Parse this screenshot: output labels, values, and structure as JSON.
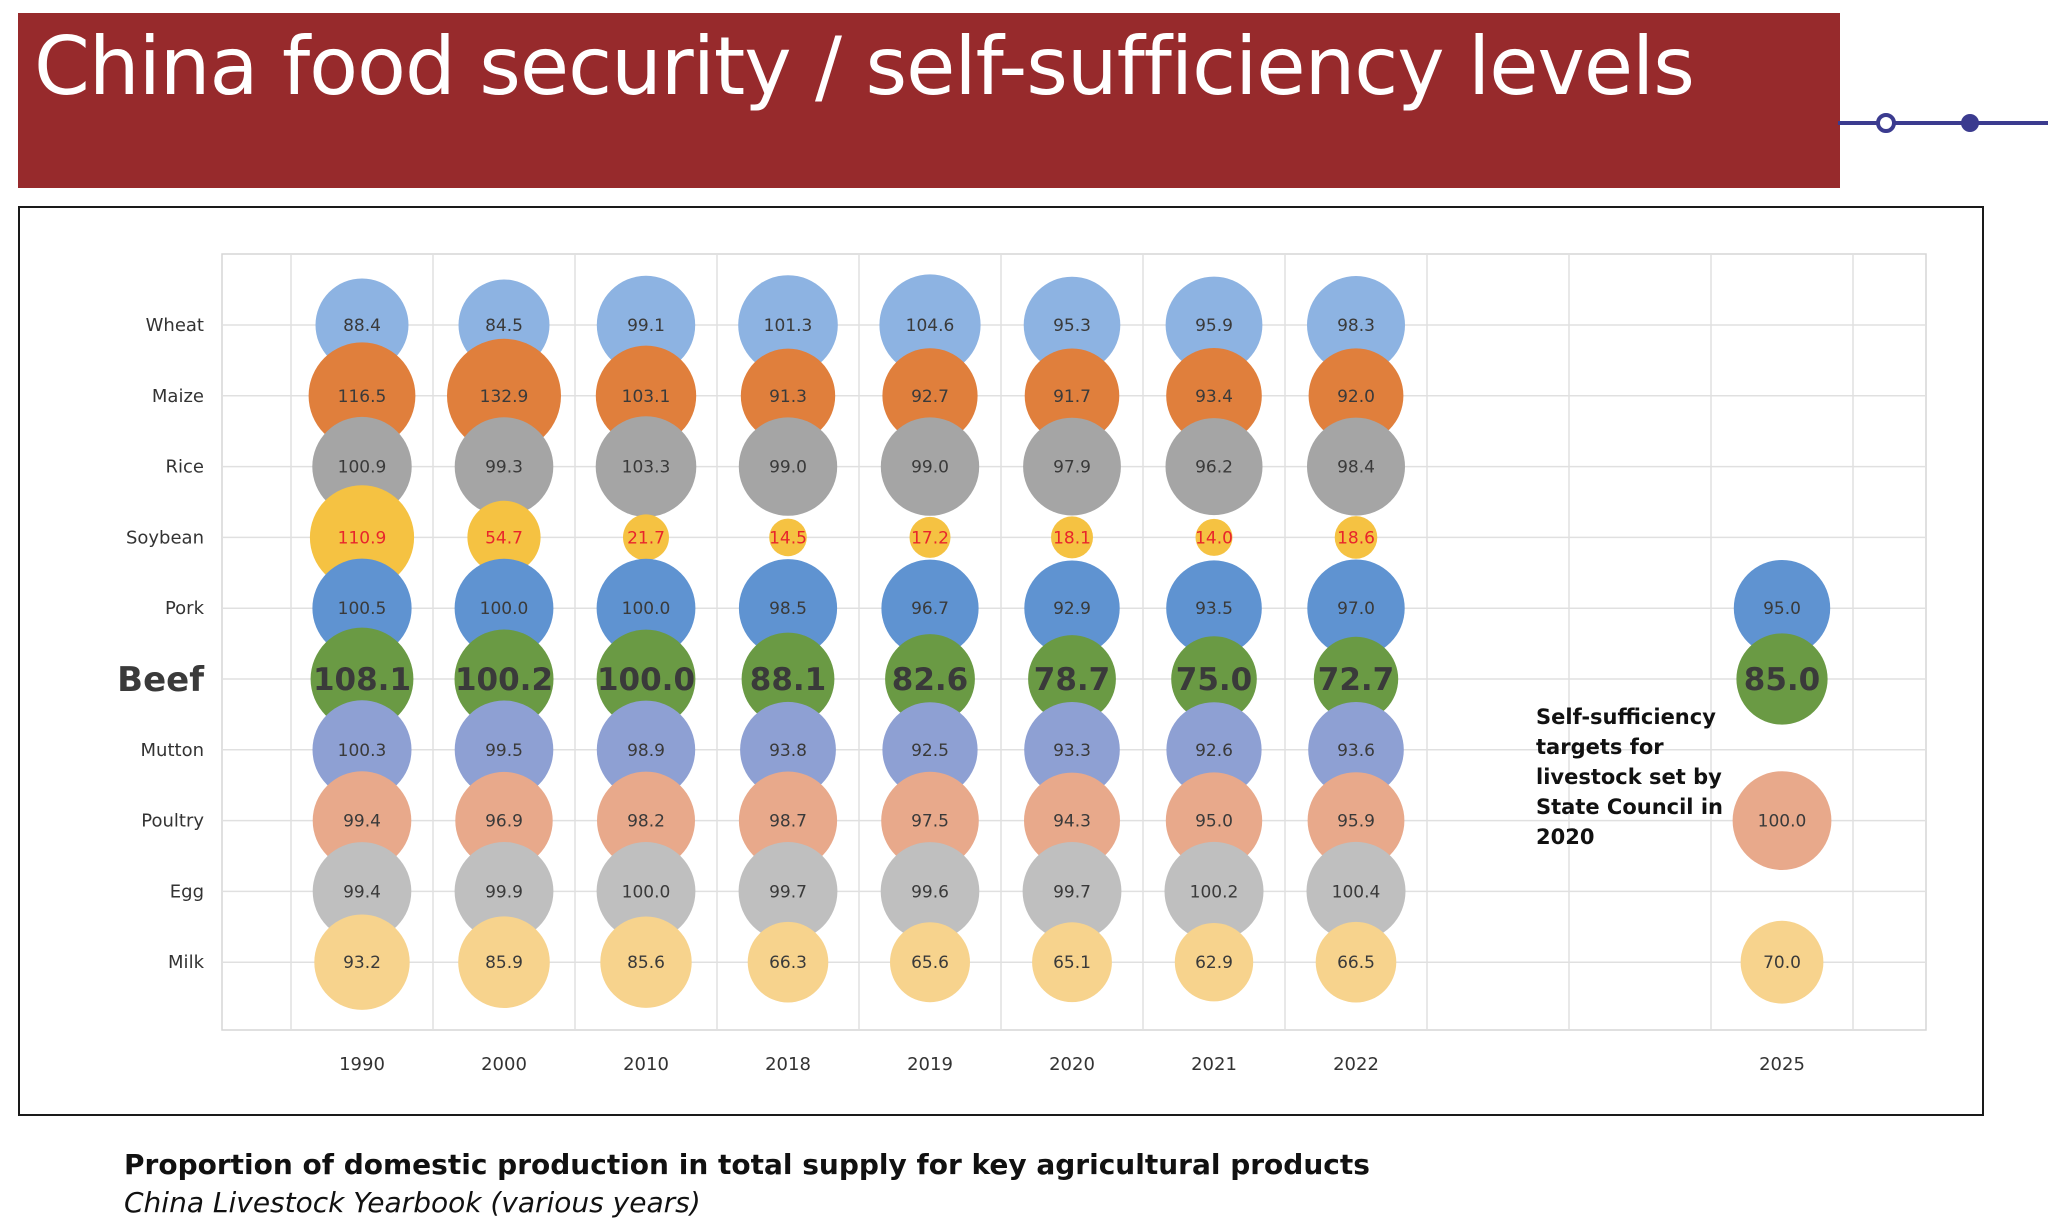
{
  "header": {
    "title": "China food security / self-sufficiency levels"
  },
  "footer": {
    "caption": "Proportion of domestic production in total supply for key agricultural products",
    "source": "China Livestock Yearbook (various years)"
  },
  "colors": {
    "banner": "#972a2c",
    "timeline": "#3b3b8f",
    "wheat": "#8db3e2",
    "maize": "#e07f3c",
    "rice": "#a5a5a5",
    "soybean": "#f5c242",
    "pork": "#5f93d1",
    "beef": "#6a9a44",
    "mutton": "#8ea0d3",
    "poultry": "#e8a98b",
    "egg": "#bfbfbf",
    "milk": "#f7d38d",
    "soybean_label": "#e8252b"
  },
  "chart_data": {
    "type": "bubble",
    "x": [
      "1990",
      "2000",
      "2010",
      "2018",
      "2019",
      "2020",
      "2021",
      "2022",
      "2025"
    ],
    "categories": [
      "Wheat",
      "Maize",
      "Rice",
      "Soybean",
      "Pork",
      "Beef",
      "Mutton",
      "Poultry",
      "Egg",
      "Milk"
    ],
    "highlighted_category": "Beef",
    "series": [
      {
        "name": "Wheat",
        "color_key": "wheat",
        "values": [
          88.4,
          84.5,
          99.1,
          101.3,
          104.6,
          95.3,
          95.9,
          98.3,
          null
        ]
      },
      {
        "name": "Maize",
        "color_key": "maize",
        "values": [
          116.5,
          132.9,
          103.1,
          91.3,
          92.7,
          91.7,
          93.4,
          92.0,
          null
        ]
      },
      {
        "name": "Rice",
        "color_key": "rice",
        "values": [
          100.9,
          99.3,
          103.3,
          99.0,
          99.0,
          97.9,
          96.2,
          98.4,
          null
        ]
      },
      {
        "name": "Soybean",
        "color_key": "soybean",
        "values": [
          110.9,
          54.7,
          21.7,
          14.5,
          17.2,
          18.1,
          14.0,
          18.6,
          null
        ]
      },
      {
        "name": "Pork",
        "color_key": "pork",
        "values": [
          100.5,
          100.0,
          100.0,
          98.5,
          96.7,
          92.9,
          93.5,
          97.0,
          95.0
        ]
      },
      {
        "name": "Beef",
        "color_key": "beef",
        "values": [
          108.1,
          100.2,
          100.0,
          88.1,
          82.6,
          78.7,
          75.0,
          72.7,
          85.0
        ]
      },
      {
        "name": "Mutton",
        "color_key": "mutton",
        "values": [
          100.3,
          99.5,
          98.9,
          93.8,
          92.5,
          93.3,
          92.6,
          93.6,
          null
        ]
      },
      {
        "name": "Poultry",
        "color_key": "poultry",
        "values": [
          99.4,
          96.9,
          98.2,
          98.7,
          97.5,
          94.3,
          95.0,
          95.9,
          100.0
        ]
      },
      {
        "name": "Egg",
        "color_key": "egg",
        "values": [
          99.4,
          99.9,
          100.0,
          99.7,
          99.6,
          99.7,
          100.2,
          100.4,
          null
        ]
      },
      {
        "name": "Milk",
        "color_key": "milk",
        "values": [
          93.2,
          85.9,
          85.6,
          66.3,
          65.6,
          65.1,
          62.9,
          66.5,
          70.0
        ]
      }
    ],
    "annotation": "Self-sufficiency targets  for livestock set by State Council in 2020",
    "grid": true
  }
}
